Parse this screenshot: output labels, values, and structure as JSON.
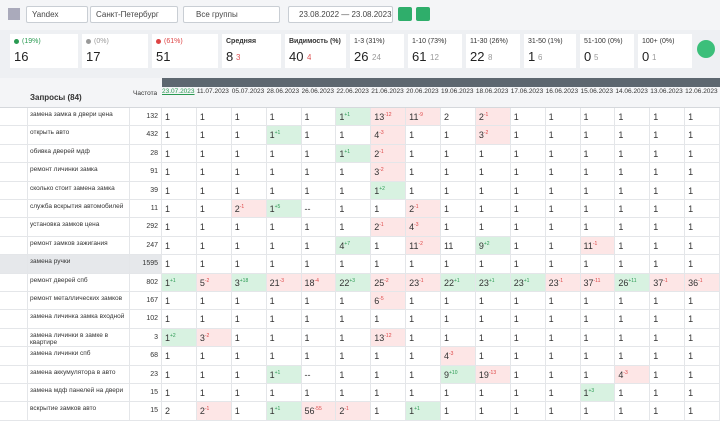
{
  "toolbar": {
    "engine": "Yandex",
    "region": "Санкт-Петербург",
    "group": "Все группы",
    "period": "23.08.2022 — 23.08.2023"
  },
  "summary": {
    "cards": [
      {
        "label": "(19%)",
        "value": "16"
      },
      {
        "label": "(0%)",
        "value": "17"
      },
      {
        "label": "(61%)",
        "value": "51"
      },
      {
        "label": "Средняя",
        "value": "8",
        "sub": "3"
      },
      {
        "label": "Видимость (%)",
        "value": "40",
        "sub": "4"
      },
      {
        "label": "1-3 (31%)",
        "value": "26",
        "sub": "24"
      },
      {
        "label": "1-10 (73%)",
        "value": "61",
        "sub": "12"
      },
      {
        "label": "11-30 (26%)",
        "value": "22",
        "sub": "8"
      },
      {
        "label": "31-50 (1%)",
        "value": "1",
        "sub": "6"
      },
      {
        "label": "51-100 (0%)",
        "value": "0",
        "sub": "5"
      },
      {
        "label": "100+ (0%)",
        "value": "0",
        "sub": "1"
      }
    ]
  },
  "table": {
    "query_header": "Запросы (84)",
    "freq_header": "Частота",
    "dates": [
      "23.07.2023",
      "11.07.2023",
      "05.07.2023",
      "28.06.2023",
      "26.06.2023",
      "22.06.2023",
      "21.06.2023",
      "20.06.2023",
      "19.06.2023",
      "18.06.2023",
      "17.06.2023",
      "16.06.2023",
      "15.06.2023",
      "14.06.2023",
      "13.06.2023",
      "12.06.2023"
    ],
    "rows": [
      {
        "query": "замена замка в двери цена",
        "freq": "132",
        "cells": [
          [
            "1"
          ],
          [
            "1"
          ],
          [
            "1"
          ],
          [
            "1"
          ],
          [
            "1"
          ],
          [
            "1",
            "+1"
          ],
          [
            "13",
            "-12"
          ],
          [
            "11",
            "-9"
          ],
          [
            "2"
          ],
          [
            "2",
            "-1"
          ],
          [
            "1"
          ],
          [
            "1"
          ],
          [
            "1"
          ],
          [
            "1"
          ],
          [
            "1"
          ],
          [
            "1"
          ]
        ]
      },
      {
        "query": "открыть авто",
        "freq": "432",
        "cells": [
          [
            "1"
          ],
          [
            "1"
          ],
          [
            "1"
          ],
          [
            "1",
            "+1"
          ],
          [
            "1"
          ],
          [
            "1"
          ],
          [
            "4",
            "-3"
          ],
          [
            "1"
          ],
          [
            "1"
          ],
          [
            "3",
            "-2"
          ],
          [
            "1"
          ],
          [
            "1"
          ],
          [
            "1"
          ],
          [
            "1"
          ],
          [
            "1"
          ],
          [
            "1"
          ]
        ]
      },
      {
        "query": "обивка дверей мдф",
        "freq": "28",
        "cells": [
          [
            "1"
          ],
          [
            "1"
          ],
          [
            "1"
          ],
          [
            "1"
          ],
          [
            "1"
          ],
          [
            "1",
            "+1"
          ],
          [
            "2",
            "-1"
          ],
          [
            "1"
          ],
          [
            "1"
          ],
          [
            "1"
          ],
          [
            "1"
          ],
          [
            "1"
          ],
          [
            "1"
          ],
          [
            "1"
          ],
          [
            "1"
          ],
          [
            "1"
          ]
        ]
      },
      {
        "query": "ремонт личинки замка",
        "freq": "91",
        "cells": [
          [
            "1"
          ],
          [
            "1"
          ],
          [
            "1"
          ],
          [
            "1"
          ],
          [
            "1"
          ],
          [
            "1"
          ],
          [
            "3",
            "-2"
          ],
          [
            "1"
          ],
          [
            "1"
          ],
          [
            "1"
          ],
          [
            "1"
          ],
          [
            "1"
          ],
          [
            "1"
          ],
          [
            "1"
          ],
          [
            "1"
          ],
          [
            "1"
          ]
        ]
      },
      {
        "query": "сколько стоит замена замка",
        "freq": "39",
        "cells": [
          [
            "1"
          ],
          [
            "1"
          ],
          [
            "1"
          ],
          [
            "1"
          ],
          [
            "1"
          ],
          [
            "1"
          ],
          [
            "1",
            "+2"
          ],
          [
            "1"
          ],
          [
            "1"
          ],
          [
            "1"
          ],
          [
            "1"
          ],
          [
            "1"
          ],
          [
            "1"
          ],
          [
            "1"
          ],
          [
            "1"
          ],
          [
            "1"
          ]
        ]
      },
      {
        "query": "служба вскрытия автомобилей",
        "freq": "11",
        "cells": [
          [
            "1"
          ],
          [
            "1"
          ],
          [
            "2",
            "-1"
          ],
          [
            "1",
            "+5"
          ],
          [
            "--"
          ],
          [
            "1"
          ],
          [
            "1"
          ],
          [
            "2",
            "-1"
          ],
          [
            "1"
          ],
          [
            "1"
          ],
          [
            "1"
          ],
          [
            "1"
          ],
          [
            "1"
          ],
          [
            "1"
          ],
          [
            "1"
          ],
          [
            "1"
          ]
        ]
      },
      {
        "query": "установка замков цена",
        "freq": "292",
        "cells": [
          [
            "1"
          ],
          [
            "1"
          ],
          [
            "1"
          ],
          [
            "1"
          ],
          [
            "1"
          ],
          [
            "1"
          ],
          [
            "2",
            "-1"
          ],
          [
            "4",
            "-3"
          ],
          [
            "1"
          ],
          [
            "1"
          ],
          [
            "1"
          ],
          [
            "1"
          ],
          [
            "1"
          ],
          [
            "1"
          ],
          [
            "1"
          ],
          [
            "1"
          ]
        ]
      },
      {
        "query": "ремонт замков зажигания",
        "freq": "247",
        "cells": [
          [
            "1"
          ],
          [
            "1"
          ],
          [
            "1"
          ],
          [
            "1"
          ],
          [
            "1"
          ],
          [
            "4",
            "+7"
          ],
          [
            "1"
          ],
          [
            "11",
            "-2"
          ],
          [
            "11"
          ],
          [
            "9",
            "+2"
          ],
          [
            "1"
          ],
          [
            "1"
          ],
          [
            "11",
            "-1"
          ],
          [
            "1"
          ],
          [
            "1"
          ],
          [
            "1"
          ]
        ]
      },
      {
        "query": "замена ручки",
        "freq": "1595",
        "cells": [
          [
            "1"
          ],
          [
            "1"
          ],
          [
            "1"
          ],
          [
            "1"
          ],
          [
            "1"
          ],
          [
            "1"
          ],
          [
            "1"
          ],
          [
            "1"
          ],
          [
            "1"
          ],
          [
            "1"
          ],
          [
            "1"
          ],
          [
            "1"
          ],
          [
            "1"
          ],
          [
            "1"
          ],
          [
            "1"
          ],
          [
            "1"
          ]
        ]
      },
      {
        "query": "ремонт дверей спб",
        "freq": "802",
        "cells": [
          [
            "1",
            "+1"
          ],
          [
            "5",
            "-2"
          ],
          [
            "3",
            "+18"
          ],
          [
            "21",
            "-3"
          ],
          [
            "18",
            "-4"
          ],
          [
            "22",
            "+3"
          ],
          [
            "25",
            "-2"
          ],
          [
            "23",
            "-1"
          ],
          [
            "22",
            "+1"
          ],
          [
            "23",
            "+1"
          ],
          [
            "23",
            "+1"
          ],
          [
            "23",
            "-1"
          ],
          [
            "37",
            "-11"
          ],
          [
            "26",
            "+11"
          ],
          [
            "37",
            "-1"
          ],
          [
            "36",
            "-1"
          ]
        ]
      },
      {
        "query": "ремонт металлических замков",
        "freq": "167",
        "cells": [
          [
            "1"
          ],
          [
            "1"
          ],
          [
            "1"
          ],
          [
            "1"
          ],
          [
            "1"
          ],
          [
            "1"
          ],
          [
            "6",
            "-5"
          ],
          [
            "1"
          ],
          [
            "1"
          ],
          [
            "1"
          ],
          [
            "1"
          ],
          [
            "1"
          ],
          [
            "1"
          ],
          [
            "1"
          ],
          [
            "1"
          ],
          [
            "1"
          ]
        ]
      },
      {
        "query": "замена личинка замка входной",
        "freq": "102",
        "cells": [
          [
            "1"
          ],
          [
            "1"
          ],
          [
            "1"
          ],
          [
            "1"
          ],
          [
            "1"
          ],
          [
            "1"
          ],
          [
            "1"
          ],
          [
            "1"
          ],
          [
            "1"
          ],
          [
            "1"
          ],
          [
            "1"
          ],
          [
            "1"
          ],
          [
            "1"
          ],
          [
            "1"
          ],
          [
            "1"
          ],
          [
            "1"
          ]
        ]
      },
      {
        "query": "замена личинки в замке в квартире",
        "freq": "3",
        "cells": [
          [
            "1",
            "+2"
          ],
          [
            "3",
            "-2"
          ],
          [
            "1"
          ],
          [
            "1"
          ],
          [
            "1"
          ],
          [
            "1"
          ],
          [
            "13",
            "-12"
          ],
          [
            "1"
          ],
          [
            "1"
          ],
          [
            "1"
          ],
          [
            "1"
          ],
          [
            "1"
          ],
          [
            "1"
          ],
          [
            "1"
          ],
          [
            "1"
          ],
          [
            "1"
          ]
        ]
      },
      {
        "query": "замена личинки спб",
        "freq": "68",
        "cells": [
          [
            "1"
          ],
          [
            "1"
          ],
          [
            "1"
          ],
          [
            "1"
          ],
          [
            "1"
          ],
          [
            "1"
          ],
          [
            "1"
          ],
          [
            "1"
          ],
          [
            "4",
            "-3"
          ],
          [
            "1"
          ],
          [
            "1"
          ],
          [
            "1"
          ],
          [
            "1"
          ],
          [
            "1"
          ],
          [
            "1"
          ],
          [
            "1"
          ]
        ]
      },
      {
        "query": "замена аккумулятора в авто",
        "freq": "23",
        "cells": [
          [
            "1"
          ],
          [
            "1"
          ],
          [
            "1"
          ],
          [
            "1",
            "+1"
          ],
          [
            "--"
          ],
          [
            "1"
          ],
          [
            "1"
          ],
          [
            "1"
          ],
          [
            "9",
            "+10"
          ],
          [
            "19",
            "-13"
          ],
          [
            "1"
          ],
          [
            "1"
          ],
          [
            "1"
          ],
          [
            "4",
            "-3"
          ],
          [
            "1"
          ],
          [
            "1"
          ]
        ]
      },
      {
        "query": "замена мдф панелей на двери",
        "freq": "15",
        "cells": [
          [
            "1"
          ],
          [
            "1"
          ],
          [
            "1"
          ],
          [
            "1"
          ],
          [
            "1"
          ],
          [
            "1"
          ],
          [
            "1"
          ],
          [
            "1"
          ],
          [
            "1"
          ],
          [
            "1"
          ],
          [
            "1"
          ],
          [
            "1"
          ],
          [
            "1",
            "+3"
          ],
          [
            "1"
          ],
          [
            "1"
          ],
          [
            "1"
          ]
        ]
      },
      {
        "query": "вскрытие замков авто",
        "freq": "15",
        "cells": [
          [
            "2"
          ],
          [
            "2",
            "-1"
          ],
          [
            "1"
          ],
          [
            "1",
            "+1"
          ],
          [
            "56",
            "-55"
          ],
          [
            "2",
            "-1"
          ],
          [
            "1"
          ],
          [
            "1",
            "+1"
          ],
          [
            "1"
          ],
          [
            "1"
          ],
          [
            "1"
          ],
          [
            "1"
          ],
          [
            "1"
          ],
          [
            "1"
          ],
          [
            "1"
          ],
          [
            "1"
          ]
        ]
      }
    ]
  }
}
